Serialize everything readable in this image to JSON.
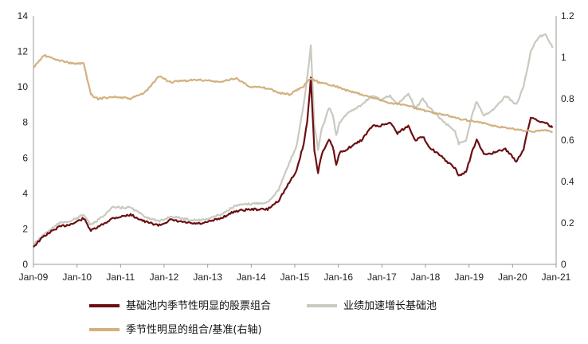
{
  "chart_data": {
    "type": "line",
    "title": "",
    "xlabel": "",
    "ylabel_left": "",
    "ylabel_right": "",
    "x_range": [
      "2009-01-01",
      "2021-01-31"
    ],
    "x_tick_labels": [
      "Jan-09",
      "Jan-10",
      "Jan-11",
      "Jan-12",
      "Jan-13",
      "Jan-14",
      "Jan-15",
      "Jan-16",
      "Jan-17",
      "Jan-18",
      "Jan-19",
      "Jan-20",
      "Jan-21"
    ],
    "y_left": {
      "min": 0,
      "max": 14,
      "ticks": [
        "0",
        "2",
        "4",
        "6",
        "8",
        "10",
        "12",
        "14"
      ]
    },
    "y_right": {
      "min": 0,
      "max": 1.2,
      "ticks": [
        "0",
        "0.2",
        "0.4",
        "0.6",
        "0.8",
        "1",
        "1.2"
      ]
    },
    "grid": false,
    "legend_position": "bottom",
    "series": [
      {
        "name": "基础池内季节性明显的股票组合",
        "color": "#6b0f12",
        "axis": "left",
        "x": [
          "2009-01",
          "2009-04",
          "2009-08",
          "2009-12",
          "2010-03",
          "2010-05",
          "2010-07",
          "2010-11",
          "2011-04",
          "2011-08",
          "2011-12",
          "2012-03",
          "2012-09",
          "2012-12",
          "2013-05",
          "2013-09",
          "2014-01",
          "2014-06",
          "2014-09",
          "2014-12",
          "2015-02",
          "2015-04",
          "2015-05",
          "2015-06",
          "2015-07",
          "2015-08",
          "2015-09",
          "2015-11",
          "2015-12",
          "2016-01",
          "2016-02",
          "2016-04",
          "2016-08",
          "2016-11",
          "2017-01",
          "2017-04",
          "2017-06",
          "2017-09",
          "2017-11",
          "2018-01",
          "2018-03",
          "2018-06",
          "2018-10",
          "2018-11",
          "2019-01",
          "2019-03",
          "2019-04",
          "2019-06",
          "2019-09",
          "2019-12",
          "2020-03",
          "2020-05",
          "2020-07",
          "2020-09",
          "2020-11",
          "2021-01"
        ],
        "y": [
          1.0,
          1.6,
          2.1,
          2.3,
          2.6,
          1.9,
          2.1,
          2.6,
          2.8,
          2.4,
          2.2,
          2.5,
          2.3,
          2.3,
          2.6,
          3.0,
          3.1,
          3.1,
          3.6,
          4.6,
          5.3,
          6.8,
          8.0,
          10.5,
          6.4,
          5.2,
          6.2,
          7.0,
          6.7,
          5.6,
          6.3,
          6.5,
          7.0,
          7.8,
          7.8,
          8.0,
          7.4,
          7.8,
          7.0,
          7.2,
          6.6,
          6.1,
          5.4,
          5.0,
          5.2,
          6.5,
          7.0,
          6.2,
          6.3,
          6.5,
          5.8,
          6.5,
          8.3,
          8.1,
          8.0,
          7.7
        ]
      },
      {
        "name": "业绩加速增长基础池",
        "color": "#c9c9c0",
        "axis": "left",
        "x": [
          "2009-01",
          "2009-04",
          "2009-08",
          "2009-12",
          "2010-03",
          "2010-05",
          "2010-07",
          "2010-11",
          "2011-04",
          "2011-08",
          "2011-12",
          "2012-03",
          "2012-09",
          "2012-12",
          "2013-05",
          "2013-09",
          "2014-01",
          "2014-06",
          "2014-09",
          "2014-12",
          "2015-02",
          "2015-04",
          "2015-05",
          "2015-06",
          "2015-07",
          "2015-08",
          "2015-09",
          "2015-11",
          "2015-12",
          "2016-01",
          "2016-02",
          "2016-04",
          "2016-08",
          "2016-11",
          "2017-01",
          "2017-04",
          "2017-06",
          "2017-09",
          "2017-11",
          "2018-01",
          "2018-03",
          "2018-06",
          "2018-10",
          "2018-11",
          "2019-01",
          "2019-03",
          "2019-04",
          "2019-06",
          "2019-09",
          "2019-12",
          "2020-03",
          "2020-05",
          "2020-07",
          "2020-09",
          "2020-11",
          "2021-01"
        ],
        "y": [
          1.1,
          1.7,
          2.3,
          2.5,
          2.8,
          2.2,
          2.5,
          3.2,
          3.2,
          2.7,
          2.4,
          2.7,
          2.5,
          2.5,
          2.8,
          3.3,
          3.4,
          3.5,
          4.2,
          5.7,
          6.7,
          9.0,
          10.5,
          12.3,
          7.8,
          6.5,
          7.6,
          8.8,
          8.5,
          7.3,
          8.0,
          8.5,
          9.0,
          9.5,
          9.3,
          9.5,
          9.0,
          9.6,
          8.8,
          9.3,
          8.8,
          8.2,
          7.5,
          6.8,
          7.0,
          8.6,
          9.2,
          8.4,
          8.8,
          9.5,
          9.0,
          10.0,
          12.0,
          12.8,
          13.0,
          12.2
        ]
      },
      {
        "name": "季节性明显的组合/基准(右轴)",
        "color": "#d3b17f",
        "axis": "right",
        "x": [
          "2009-01",
          "2009-04",
          "2009-07",
          "2009-12",
          "2010-03",
          "2010-05",
          "2010-07",
          "2010-11",
          "2011-04",
          "2011-08",
          "2011-12",
          "2012-03",
          "2012-09",
          "2012-12",
          "2013-05",
          "2013-09",
          "2014-01",
          "2014-06",
          "2014-09",
          "2014-12",
          "2015-02",
          "2015-04",
          "2015-06",
          "2015-08",
          "2015-11",
          "2016-01",
          "2016-04",
          "2016-08",
          "2016-12",
          "2017-04",
          "2017-08",
          "2017-12",
          "2018-04",
          "2018-08",
          "2018-12",
          "2019-04",
          "2019-08",
          "2019-12",
          "2020-04",
          "2020-08",
          "2020-11",
          "2021-01"
        ],
        "y": [
          0.95,
          1.01,
          0.99,
          0.97,
          0.97,
          0.82,
          0.8,
          0.81,
          0.8,
          0.83,
          0.91,
          0.88,
          0.89,
          0.89,
          0.88,
          0.9,
          0.86,
          0.85,
          0.83,
          0.82,
          0.84,
          0.86,
          0.9,
          0.88,
          0.87,
          0.86,
          0.84,
          0.82,
          0.8,
          0.78,
          0.77,
          0.75,
          0.73,
          0.72,
          0.7,
          0.69,
          0.67,
          0.66,
          0.65,
          0.64,
          0.65,
          0.64
        ]
      }
    ]
  }
}
